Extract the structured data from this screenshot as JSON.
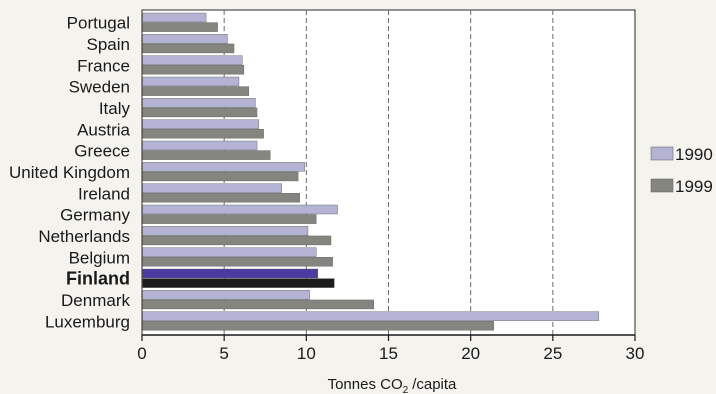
{
  "chart_data": {
    "type": "bar",
    "orientation": "horizontal",
    "categories": [
      "Portugal",
      "Spain",
      "France",
      "Sweden",
      "Italy",
      "Austria",
      "Greece",
      "United Kingdom",
      "Ireland",
      "Germany",
      "Netherlands",
      "Belgium",
      "Finland",
      "Denmark",
      "Luxemburg"
    ],
    "highlight": "Finland",
    "series": [
      {
        "name": "1990",
        "values": [
          3.9,
          5.2,
          6.1,
          5.9,
          6.9,
          7.1,
          7.0,
          9.9,
          8.5,
          11.9,
          10.1,
          10.6,
          10.7,
          10.2,
          27.8
        ]
      },
      {
        "name": "1999",
        "values": [
          4.6,
          5.6,
          6.2,
          6.5,
          7.0,
          7.4,
          7.8,
          9.5,
          9.6,
          10.6,
          11.5,
          11.6,
          11.7,
          14.1,
          21.4
        ]
      }
    ],
    "colors": {
      "1990": "#b4b3d4",
      "1999": "#858580",
      "highlight_1990": "#4b3aa0",
      "highlight_1999": "#1c1c1c"
    },
    "xticks": [
      0,
      5,
      10,
      15,
      20,
      25,
      30
    ],
    "xlim": [
      0,
      30
    ],
    "xlabel": "Tonnes CO  /capita",
    "xlabel_subscript": "2",
    "grid": "vertical-dashed",
    "legend": "right"
  }
}
